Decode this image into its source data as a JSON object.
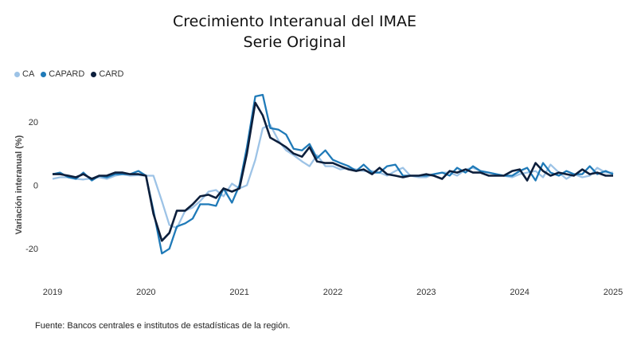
{
  "title": "Crecimiento Interanual del IMAE",
  "subtitle": "Serie Original",
  "source": "Fuente: Bancos centrales e institutos de estadísticas de la región.",
  "chart_data": {
    "type": "line",
    "title": "Crecimiento Interanual del IMAE\nSerie Original",
    "xlabel": "",
    "ylabel": "Variación interanual (%)",
    "xlim": [
      2019.0,
      2025.0
    ],
    "ylim": [
      -30,
      30
    ],
    "grid": false,
    "legend_position": "top-left",
    "x_ticks": [
      2019,
      2020,
      2021,
      2022,
      2023,
      2024,
      2025
    ],
    "y_ticks": [
      -20,
      0,
      20
    ],
    "series": [
      {
        "name": "CA",
        "color": "#9dc3e6",
        "x": [
          2019.0,
          2019.08,
          2019.17,
          2019.25,
          2019.33,
          2019.42,
          2019.5,
          2019.58,
          2019.67,
          2019.75,
          2019.83,
          2019.92,
          2020.0,
          2020.08,
          2020.17,
          2020.25,
          2020.33,
          2020.42,
          2020.5,
          2020.58,
          2020.67,
          2020.75,
          2020.83,
          2020.92,
          2021.0,
          2021.08,
          2021.17,
          2021.25,
          2021.33,
          2021.42,
          2021.5,
          2021.58,
          2021.67,
          2021.75,
          2021.83,
          2021.92,
          2022.0,
          2022.08,
          2022.17,
          2022.25,
          2022.33,
          2022.42,
          2022.5,
          2022.58,
          2022.67,
          2022.75,
          2022.83,
          2022.92,
          2023.0,
          2023.08,
          2023.17,
          2023.25,
          2023.33,
          2023.42,
          2023.5,
          2023.58,
          2023.67,
          2023.75,
          2023.83,
          2023.92,
          2024.0,
          2024.08,
          2024.17,
          2024.25,
          2024.33,
          2024.42,
          2024.5,
          2024.58,
          2024.67,
          2024.75,
          2024.83,
          2024.92,
          2025.0
        ],
        "values": [
          2.0,
          2.5,
          2.5,
          2.0,
          1.8,
          2.2,
          2.5,
          2.0,
          3.0,
          3.5,
          3.0,
          3.2,
          3.0,
          3.0,
          -5.0,
          -12.5,
          -13.5,
          -8.0,
          -7.0,
          -5.0,
          -2.0,
          -1.5,
          -3.5,
          0.5,
          -1.0,
          0.0,
          8.0,
          18.0,
          19.0,
          14.0,
          11.0,
          9.5,
          7.5,
          6.0,
          9.5,
          6.0,
          6.0,
          5.0,
          5.5,
          5.0,
          4.5,
          4.5,
          4.0,
          3.0,
          4.5,
          5.5,
          3.0,
          2.5,
          2.5,
          3.5,
          4.0,
          4.0,
          3.0,
          5.0,
          5.5,
          4.5,
          4.0,
          3.5,
          3.0,
          2.5,
          3.5,
          4.0,
          4.5,
          2.5,
          6.5,
          4.0,
          2.0,
          3.5,
          2.5,
          3.0,
          5.5,
          4.0,
          4.0
        ]
      },
      {
        "name": "CAPARD",
        "color": "#1f7ab8",
        "x": [
          2019.0,
          2019.08,
          2019.17,
          2019.25,
          2019.33,
          2019.42,
          2019.5,
          2019.58,
          2019.67,
          2019.75,
          2019.83,
          2019.92,
          2020.0,
          2020.08,
          2020.17,
          2020.25,
          2020.33,
          2020.42,
          2020.5,
          2020.58,
          2020.67,
          2020.75,
          2020.83,
          2020.92,
          2021.0,
          2021.08,
          2021.17,
          2021.25,
          2021.33,
          2021.42,
          2021.5,
          2021.58,
          2021.67,
          2021.75,
          2021.83,
          2021.92,
          2022.0,
          2022.08,
          2022.17,
          2022.25,
          2022.33,
          2022.42,
          2022.5,
          2022.58,
          2022.67,
          2022.75,
          2022.83,
          2022.92,
          2023.0,
          2023.08,
          2023.17,
          2023.25,
          2023.33,
          2023.42,
          2023.5,
          2023.58,
          2023.67,
          2023.75,
          2023.83,
          2023.92,
          2024.0,
          2024.08,
          2024.17,
          2024.25,
          2024.33,
          2024.42,
          2024.5,
          2024.58,
          2024.67,
          2024.75,
          2024.83,
          2024.92,
          2025.0
        ],
        "values": [
          3.5,
          4.0,
          2.5,
          2.0,
          4.0,
          1.5,
          3.0,
          2.5,
          3.5,
          3.5,
          3.5,
          4.5,
          3.0,
          -8.0,
          -21.5,
          -20.0,
          -13.0,
          -12.0,
          -10.5,
          -6.0,
          -6.0,
          -6.5,
          -1.0,
          -5.5,
          0.0,
          12.0,
          28.0,
          28.5,
          18.0,
          17.5,
          16.0,
          11.5,
          11.0,
          13.0,
          8.5,
          11.0,
          8.0,
          7.0,
          6.0,
          4.5,
          6.5,
          4.0,
          4.0,
          6.0,
          6.5,
          3.0,
          3.0,
          3.0,
          3.0,
          3.5,
          4.0,
          3.0,
          5.5,
          4.0,
          6.0,
          4.5,
          4.0,
          3.5,
          3.0,
          3.0,
          4.5,
          5.5,
          1.5,
          7.0,
          4.0,
          3.0,
          4.5,
          3.5,
          3.5,
          6.0,
          3.5,
          4.5,
          3.5
        ]
      },
      {
        "name": "CARD",
        "color": "#0d1f3c",
        "x": [
          2019.0,
          2019.08,
          2019.17,
          2019.25,
          2019.33,
          2019.42,
          2019.5,
          2019.58,
          2019.67,
          2019.75,
          2019.83,
          2019.92,
          2020.0,
          2020.08,
          2020.17,
          2020.25,
          2020.33,
          2020.42,
          2020.5,
          2020.58,
          2020.67,
          2020.75,
          2020.83,
          2020.92,
          2021.0,
          2021.08,
          2021.17,
          2021.25,
          2021.33,
          2021.42,
          2021.5,
          2021.58,
          2021.67,
          2021.75,
          2021.83,
          2021.92,
          2022.0,
          2022.08,
          2022.17,
          2022.25,
          2022.33,
          2022.42,
          2022.5,
          2022.58,
          2022.67,
          2022.75,
          2022.83,
          2022.92,
          2023.0,
          2023.08,
          2023.17,
          2023.25,
          2023.33,
          2023.42,
          2023.5,
          2023.58,
          2023.67,
          2023.75,
          2023.83,
          2023.92,
          2024.0,
          2024.08,
          2024.17,
          2024.25,
          2024.33,
          2024.42,
          2024.5,
          2024.58,
          2024.67,
          2024.75,
          2024.83,
          2024.92,
          2025.0
        ],
        "values": [
          3.5,
          3.5,
          3.0,
          2.5,
          3.5,
          2.0,
          3.0,
          3.0,
          4.0,
          4.0,
          3.5,
          3.5,
          3.0,
          -9.0,
          -17.5,
          -15.0,
          -8.0,
          -8.0,
          -6.0,
          -3.5,
          -3.0,
          -4.0,
          -1.0,
          -2.0,
          -1.0,
          10.0,
          26.0,
          22.0,
          15.0,
          13.5,
          12.0,
          10.0,
          9.0,
          12.0,
          7.5,
          7.0,
          7.0,
          6.0,
          5.0,
          4.5,
          5.0,
          3.5,
          5.5,
          3.5,
          3.0,
          2.5,
          3.0,
          3.0,
          3.5,
          3.0,
          2.0,
          4.5,
          4.0,
          5.0,
          4.0,
          4.0,
          3.0,
          3.0,
          3.0,
          4.5,
          5.0,
          1.5,
          7.0,
          4.5,
          3.0,
          4.0,
          3.5,
          3.0,
          5.0,
          3.5,
          4.0,
          3.0,
          3.0
        ]
      }
    ]
  }
}
